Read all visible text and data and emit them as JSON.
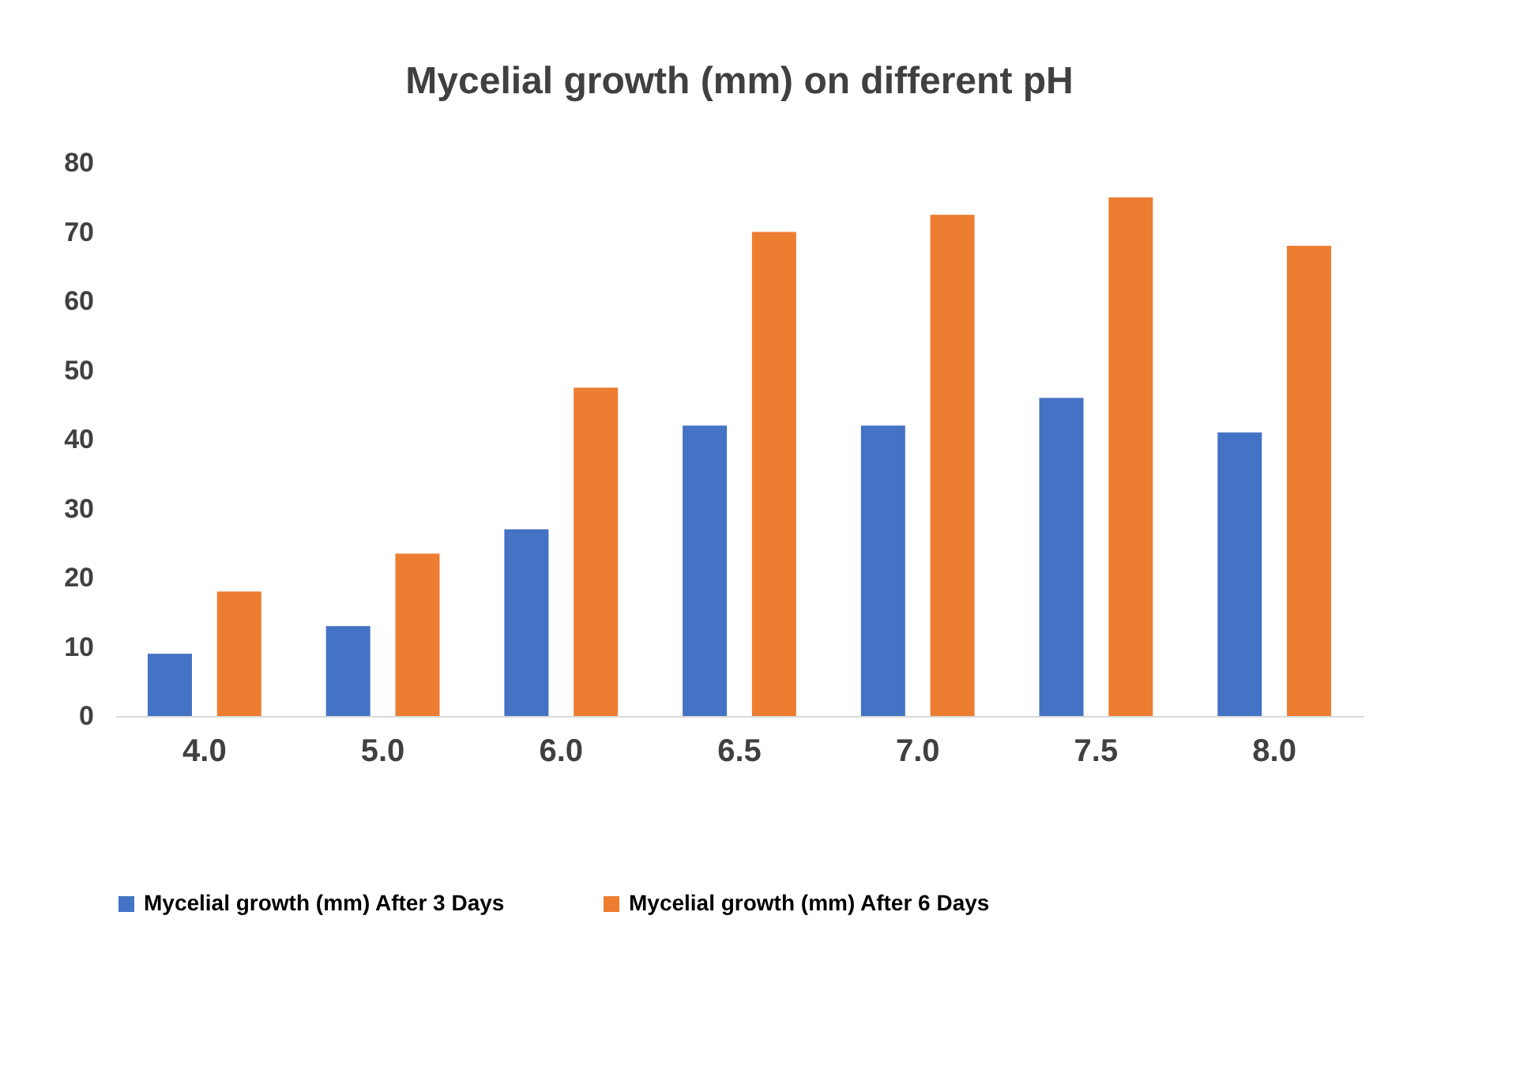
{
  "chart_data": {
    "type": "bar",
    "title": "Mycelial growth (mm) on different pH",
    "categories": [
      "4.0",
      "5.0",
      "6.0",
      "6.5",
      "7.0",
      "7.5",
      "8.0"
    ],
    "series": [
      {
        "name": "Mycelial growth (mm) After 3 Days",
        "color": "#4472c4",
        "values": [
          9,
          13,
          27,
          42,
          42,
          46,
          41
        ]
      },
      {
        "name": "Mycelial growth (mm) After  6 Days",
        "color": "#ed7d31",
        "values": [
          18,
          23.5,
          47.5,
          70,
          72.5,
          75,
          68
        ]
      }
    ],
    "ylim": [
      0,
      80
    ],
    "yticks": [
      0,
      10,
      20,
      30,
      40,
      50,
      60,
      70,
      80
    ],
    "grid": false,
    "legend": "bottom"
  }
}
